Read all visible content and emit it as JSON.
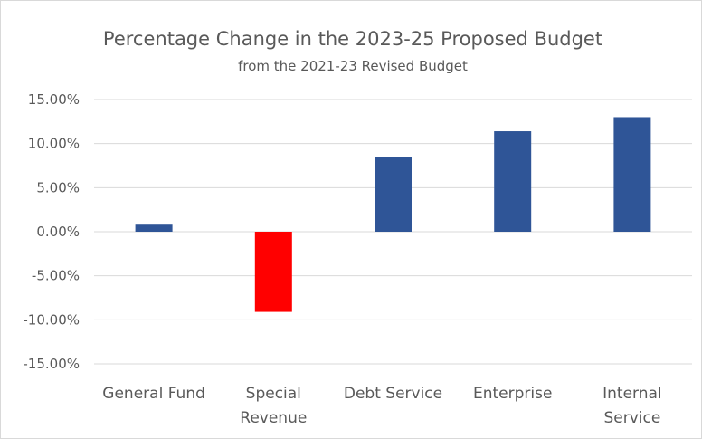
{
  "chart_data": {
    "type": "bar",
    "title": "Percentage Change in the 2023-25 Proposed Budget",
    "subtitle": "from the 2021-23 Revised Budget",
    "categories": [
      "General Fund",
      "Special Revenue",
      "Debt Service",
      "Enterprise",
      "Internal Service"
    ],
    "category_lines": [
      [
        "General Fund"
      ],
      [
        "Special",
        "Revenue"
      ],
      [
        "Debt Service"
      ],
      [
        "Enterprise"
      ],
      [
        "Internal",
        "Service"
      ]
    ],
    "values": [
      0.8,
      -9.1,
      8.5,
      11.4,
      13.0
    ],
    "bar_colors": [
      "#2F5597",
      "#FF0000",
      "#2F5597",
      "#2F5597",
      "#2F5597"
    ],
    "ylim": [
      -15,
      15
    ],
    "yticks": [
      15,
      10,
      5,
      0,
      -5,
      -10,
      -15
    ],
    "ytick_labels": [
      "15.00%",
      "10.00%",
      "5.00%",
      "0.00%",
      "-5.00%",
      "-10.00%",
      "-15.00%"
    ],
    "xlabel": "",
    "ylabel": "",
    "grid": true,
    "legend": "none",
    "colors": {
      "positive": "#2F5597",
      "negative": "#FF0000",
      "grid": "#D9D9D9",
      "text": "#595959"
    }
  }
}
